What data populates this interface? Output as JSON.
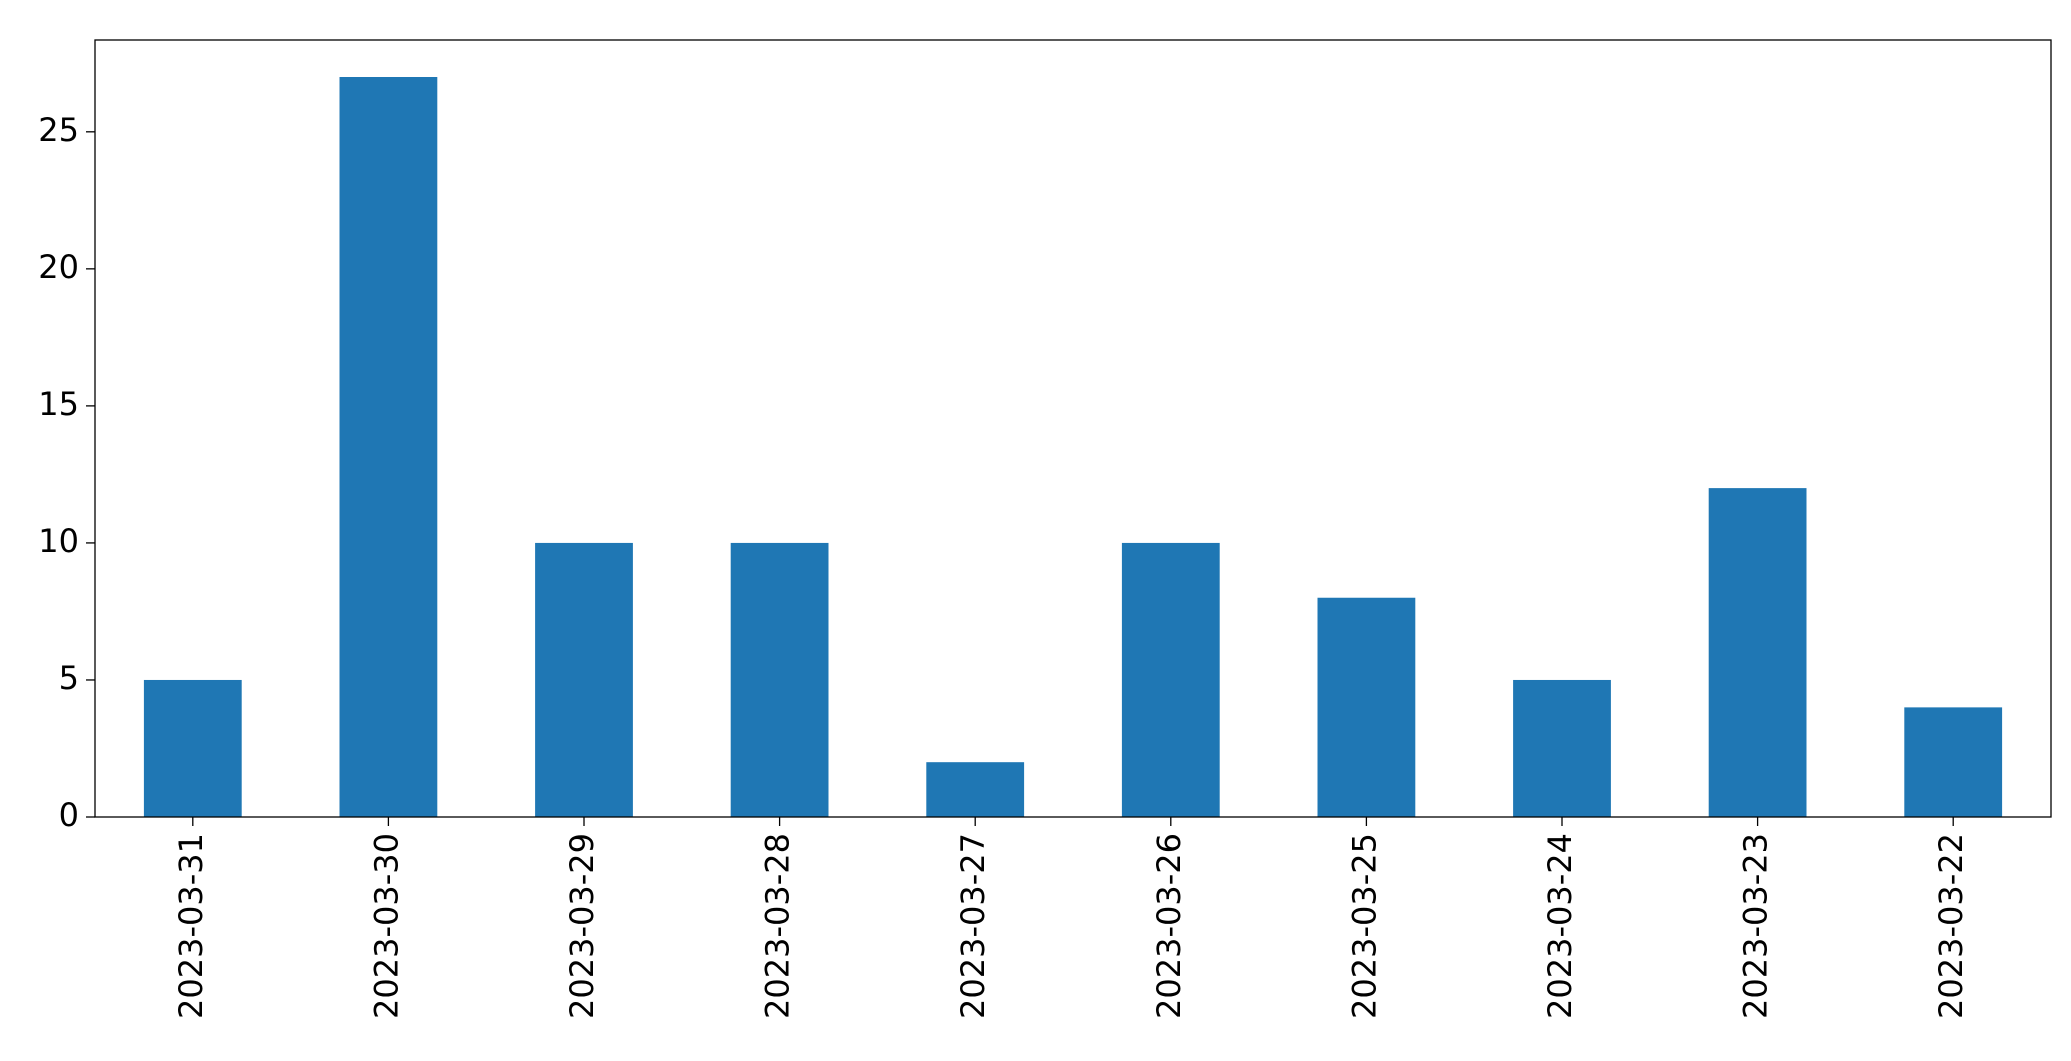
{
  "chart_data": {
    "type": "bar",
    "categories": [
      "2023-03-31",
      "2023-03-30",
      "2023-03-29",
      "2023-03-28",
      "2023-03-27",
      "2023-03-26",
      "2023-03-25",
      "2023-03-24",
      "2023-03-23",
      "2023-03-22"
    ],
    "values": [
      5,
      27,
      10,
      10,
      2,
      10,
      8,
      5,
      12,
      4
    ],
    "color": "#1f77b4",
    "ylim": [
      0,
      28.35
    ],
    "yticks": [
      0,
      5,
      10,
      15,
      20,
      25
    ],
    "grid": false
  }
}
